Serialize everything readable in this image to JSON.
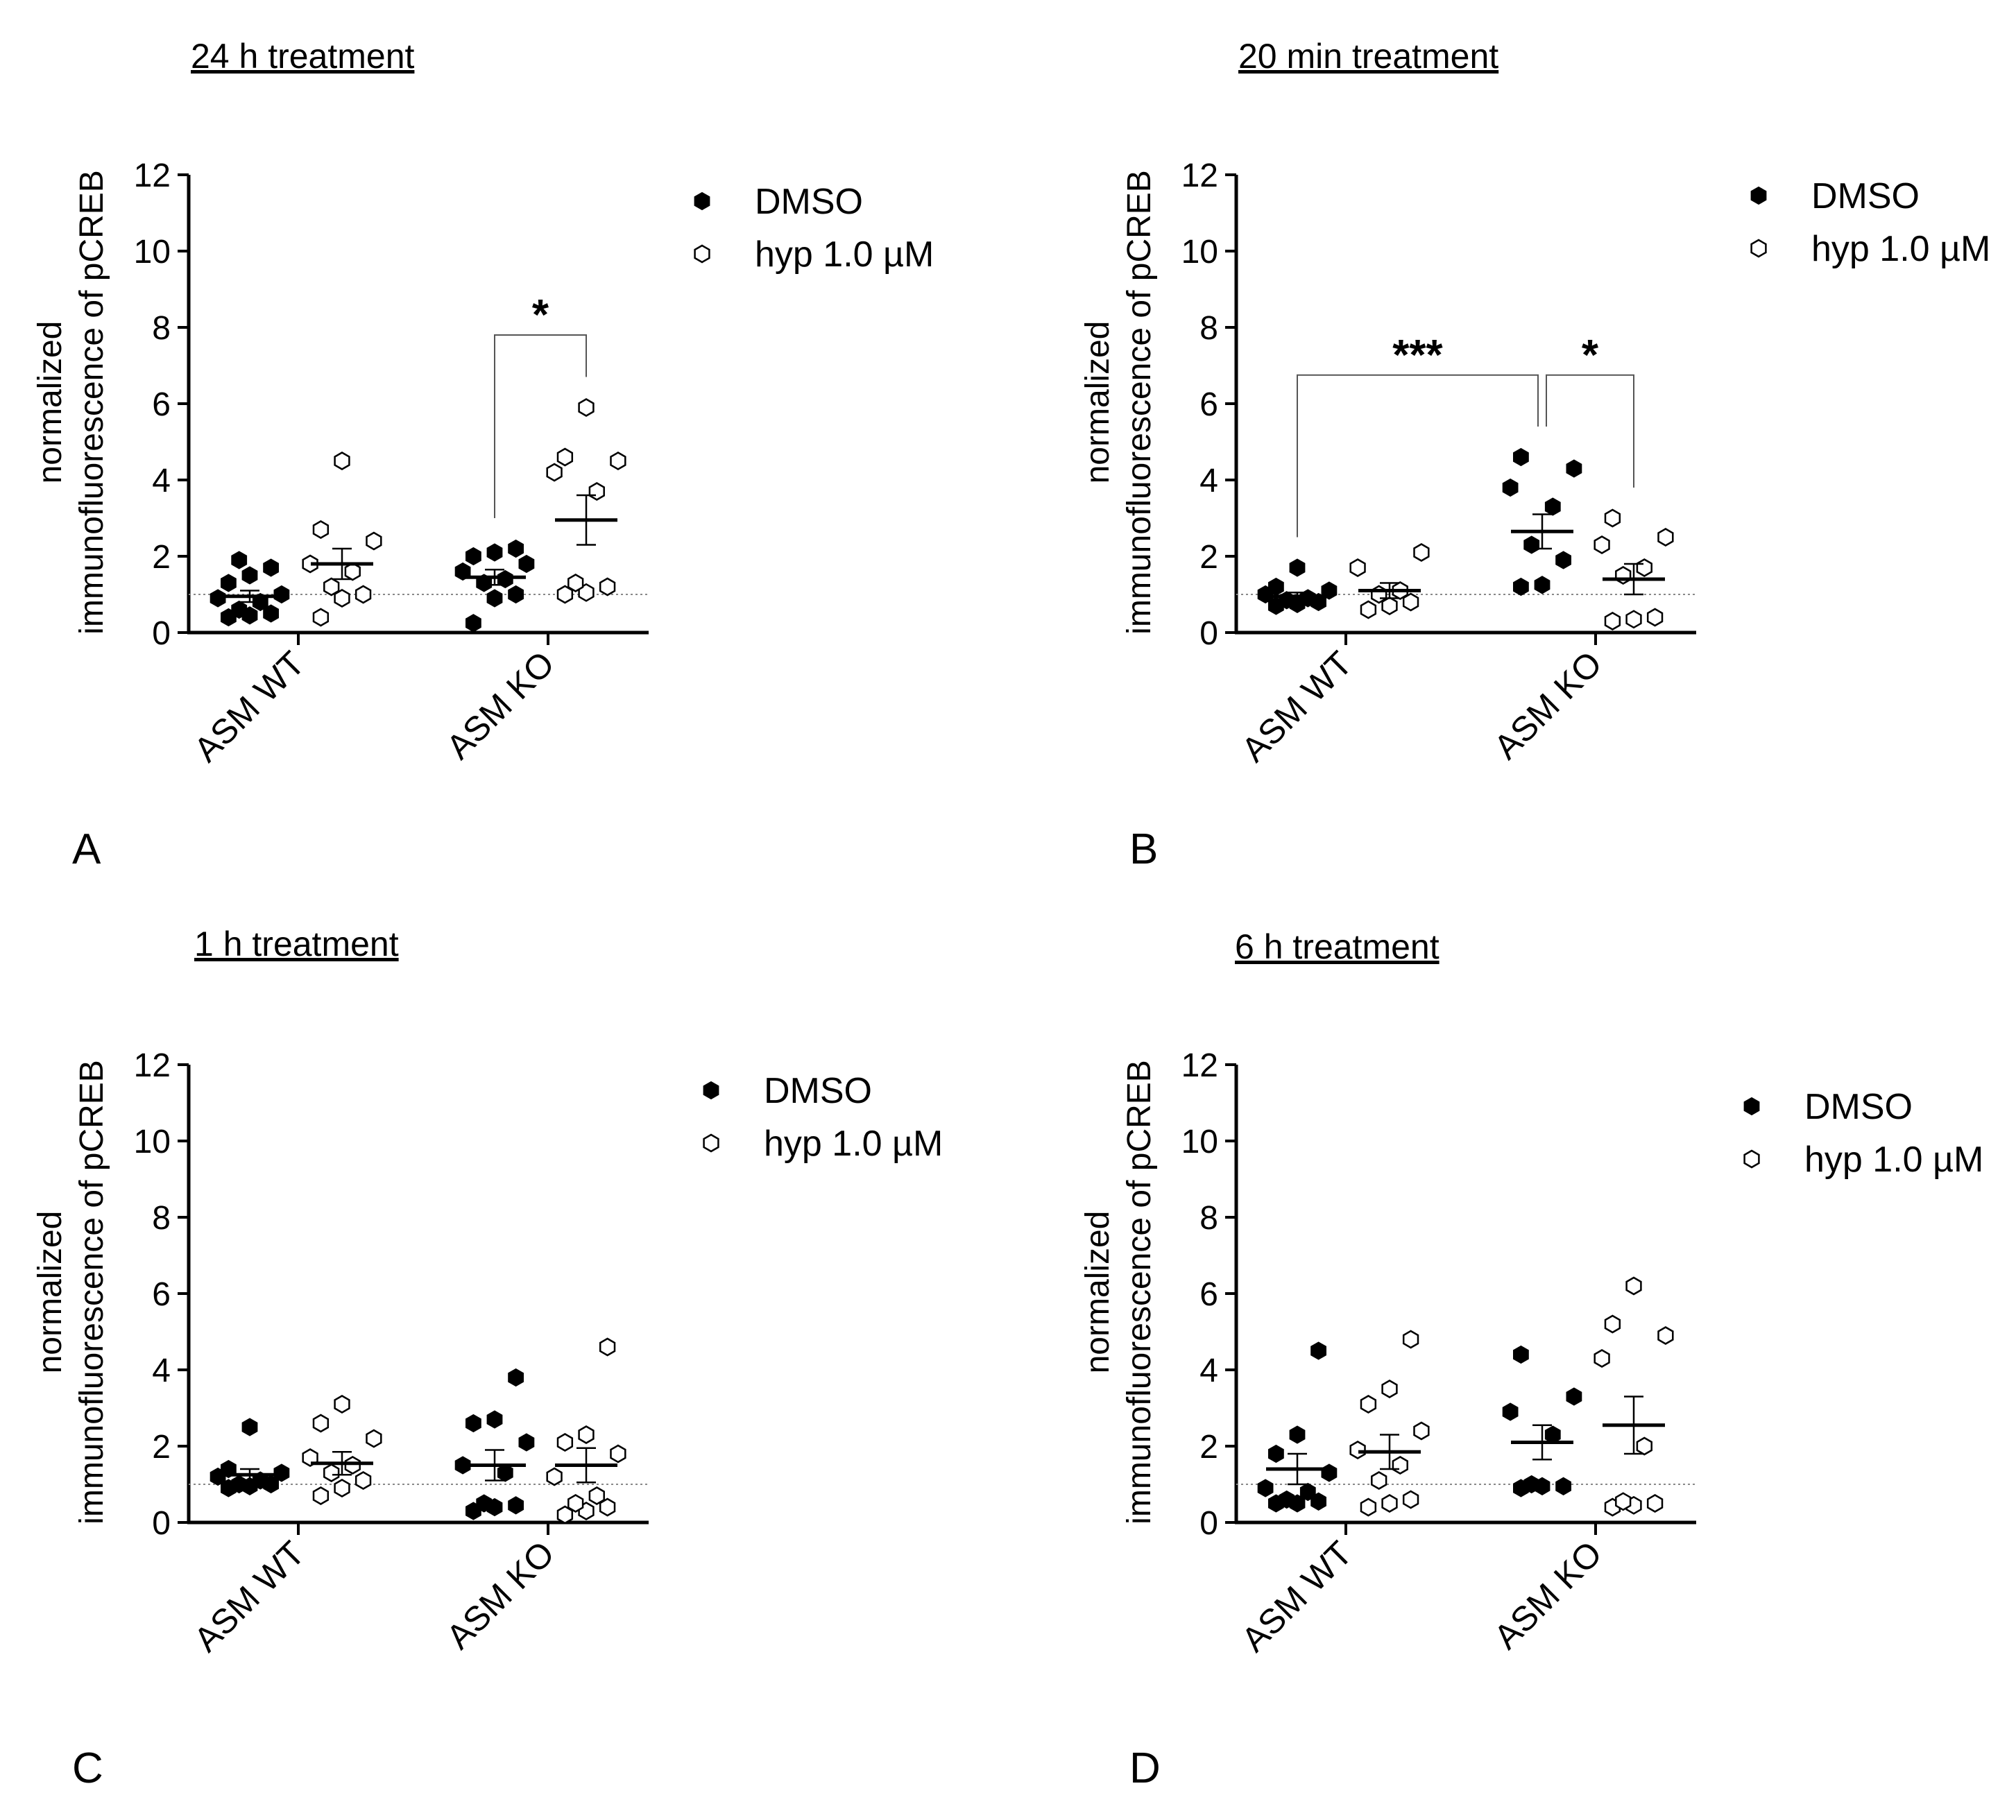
{
  "figure": {
    "background": "#ffffff",
    "dmso_color": "#000000",
    "hyp_color": "#ffffff"
  },
  "chart_data": [
    {
      "panel": "A",
      "type": "scatter",
      "title": "24 h treatment",
      "ylabel_line1": "normalized",
      "ylabel_line2": "immunofluorescence of pCREB",
      "ylim": [
        0,
        12
      ],
      "yticks": [
        "0",
        "2",
        "4",
        "6",
        "8",
        "10",
        "12"
      ],
      "reference_line": 1,
      "categories": [
        "ASM WT",
        "ASM KO"
      ],
      "legend": [
        "DMSO",
        "hyp 1.0 µM"
      ],
      "series": [
        {
          "name": "DMSO",
          "group": "ASM WT",
          "points": [
            0.4,
            0.45,
            0.5,
            0.6,
            0.8,
            0.9,
            1.0,
            1.3,
            1.5,
            1.7,
            1.9
          ],
          "mean": 0.95,
          "sem": 0.15
        },
        {
          "name": "hyp 1.0 µM",
          "group": "ASM WT",
          "points": [
            0.4,
            0.9,
            1.0,
            1.2,
            1.6,
            1.8,
            2.4,
            2.7,
            4.5
          ],
          "mean": 1.8,
          "sem": 0.4
        },
        {
          "name": "DMSO",
          "group": "ASM KO",
          "points": [
            0.25,
            0.9,
            1.0,
            1.3,
            1.4,
            1.6,
            1.8,
            2.0,
            2.1,
            2.2
          ],
          "mean": 1.45,
          "sem": 0.2
        },
        {
          "name": "hyp 1.0 µM",
          "group": "ASM KO",
          "points": [
            1.0,
            1.05,
            1.2,
            1.3,
            3.7,
            4.2,
            4.5,
            4.6,
            5.9
          ],
          "mean": 2.95,
          "sem": 0.65
        }
      ],
      "significance": [
        {
          "from": "ASM KO DMSO",
          "to": "ASM KO hyp 1.0 µM",
          "label": "*",
          "y": 7.8
        }
      ]
    },
    {
      "panel": "B",
      "type": "scatter",
      "title": "20 min treatment",
      "ylabel_line1": "normalized",
      "ylabel_line2": "immunofluorescence of pCREB",
      "ylim": [
        0,
        12
      ],
      "yticks": [
        "0",
        "2",
        "4",
        "6",
        "8",
        "10",
        "12"
      ],
      "reference_line": 1,
      "categories": [
        "ASM WT",
        "ASM KO"
      ],
      "legend": [
        "DMSO",
        "hyp 1.0 µM"
      ],
      "series": [
        {
          "name": "DMSO",
          "group": "ASM WT",
          "points": [
            0.7,
            0.75,
            0.8,
            0.85,
            0.9,
            1.0,
            1.1,
            1.2,
            1.7
          ],
          "mean": 0.95,
          "sem": 0.1
        },
        {
          "name": "hyp 1.0 µM",
          "group": "ASM WT",
          "points": [
            0.6,
            0.7,
            0.8,
            1.0,
            1.1,
            1.7,
            2.1
          ],
          "mean": 1.1,
          "sem": 0.2
        },
        {
          "name": "DMSO",
          "group": "ASM KO",
          "points": [
            1.2,
            1.25,
            1.9,
            2.3,
            3.3,
            3.8,
            4.3,
            4.6
          ],
          "mean": 2.65,
          "sem": 0.45
        },
        {
          "name": "hyp 1.0 µM",
          "group": "ASM KO",
          "points": [
            0.3,
            0.35,
            0.4,
            1.5,
            1.7,
            2.3,
            2.5,
            3.0
          ],
          "mean": 1.4,
          "sem": 0.4
        }
      ],
      "significance": [
        {
          "from": "ASM WT DMSO",
          "to": "ASM KO DMSO",
          "label": "***",
          "y": 6.75
        },
        {
          "from": "ASM KO DMSO",
          "to": "ASM KO hyp 1.0 µM",
          "label": "*",
          "y": 6.75
        }
      ]
    },
    {
      "panel": "C",
      "type": "scatter",
      "title": "1 h treatment",
      "ylabel_line1": "normalized",
      "ylabel_line2": "immunofluorescence of pCREB",
      "ylim": [
        0,
        12
      ],
      "yticks": [
        "0",
        "2",
        "4",
        "6",
        "8",
        "10",
        "12"
      ],
      "reference_line": 1,
      "categories": [
        "ASM WT",
        "ASM KO"
      ],
      "legend": [
        "DMSO",
        "hyp 1.0 µM"
      ],
      "series": [
        {
          "name": "DMSO",
          "group": "ASM WT",
          "points": [
            0.9,
            0.95,
            1.0,
            1.0,
            1.1,
            1.2,
            1.3,
            1.4,
            2.5
          ],
          "mean": 1.25,
          "sem": 0.15
        },
        {
          "name": "hyp 1.0 µM",
          "group": "ASM WT",
          "points": [
            0.7,
            0.9,
            1.1,
            1.3,
            1.5,
            1.7,
            2.2,
            2.6,
            3.1
          ],
          "mean": 1.55,
          "sem": 0.3
        },
        {
          "name": "DMSO",
          "group": "ASM KO",
          "points": [
            0.3,
            0.4,
            0.45,
            0.5,
            1.3,
            1.5,
            2.1,
            2.6,
            2.7,
            3.8
          ],
          "mean": 1.5,
          "sem": 0.4
        },
        {
          "name": "hyp 1.0 µM",
          "group": "ASM KO",
          "points": [
            0.2,
            0.3,
            0.4,
            0.5,
            0.7,
            1.2,
            1.8,
            2.1,
            2.3,
            4.6
          ],
          "mean": 1.5,
          "sem": 0.45
        }
      ],
      "significance": []
    },
    {
      "panel": "D",
      "type": "scatter",
      "title": "6 h treatment",
      "ylabel_line1": "normalized",
      "ylabel_line2": "immunofluorescence of pCREB",
      "ylim": [
        0,
        12
      ],
      "yticks": [
        "0",
        "2",
        "4",
        "6",
        "8",
        "10",
        "12"
      ],
      "reference_line": 1,
      "categories": [
        "ASM WT",
        "ASM KO"
      ],
      "legend": [
        "DMSO",
        "hyp 1.0 µM"
      ],
      "series": [
        {
          "name": "DMSO",
          "group": "ASM WT",
          "points": [
            0.5,
            0.5,
            0.55,
            0.6,
            0.8,
            0.9,
            1.3,
            1.8,
            2.3,
            4.5
          ],
          "mean": 1.4,
          "sem": 0.4
        },
        {
          "name": "hyp 1.0 µM",
          "group": "ASM WT",
          "points": [
            0.4,
            0.5,
            0.6,
            1.1,
            1.5,
            1.9,
            2.4,
            3.1,
            3.5,
            4.8
          ],
          "mean": 1.85,
          "sem": 0.45
        },
        {
          "name": "DMSO",
          "group": "ASM KO",
          "points": [
            0.9,
            0.95,
            0.95,
            1.0,
            2.3,
            2.9,
            3.3,
            4.4
          ],
          "mean": 2.1,
          "sem": 0.45
        },
        {
          "name": "hyp 1.0 µM",
          "group": "ASM KO",
          "points": [
            0.4,
            0.45,
            0.5,
            0.55,
            2.0,
            4.3,
            4.9,
            5.2,
            6.2
          ],
          "mean": 2.55,
          "sem": 0.75
        }
      ],
      "significance": []
    }
  ]
}
